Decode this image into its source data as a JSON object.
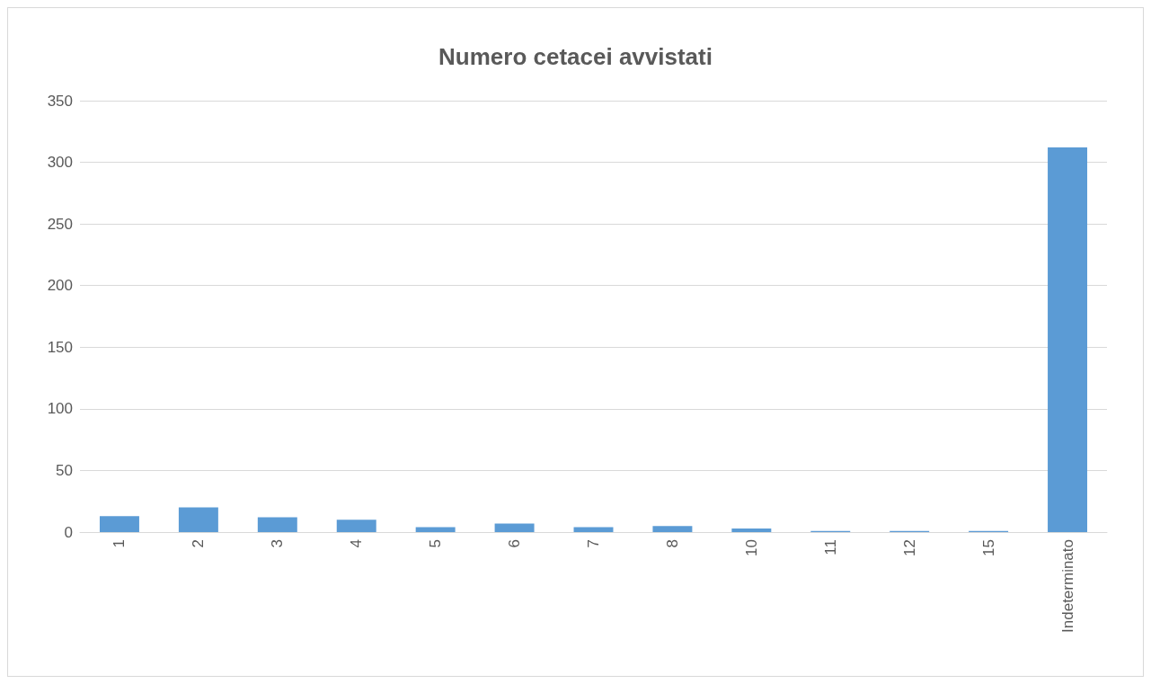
{
  "chart_data": {
    "type": "bar",
    "title": "Numero cetacei avvistati",
    "categories": [
      "1",
      "2",
      "3",
      "4",
      "5",
      "6",
      "7",
      "8",
      "10",
      "11",
      "12",
      "15",
      "Indeterminato"
    ],
    "values": [
      13,
      20,
      12,
      10,
      4,
      7,
      4,
      5,
      3,
      1,
      1,
      1,
      312
    ],
    "color": "#5b9bd5",
    "ylim": [
      0,
      350
    ],
    "yticks": [
      0,
      50,
      100,
      150,
      200,
      250,
      300,
      350
    ],
    "grid": "y"
  }
}
